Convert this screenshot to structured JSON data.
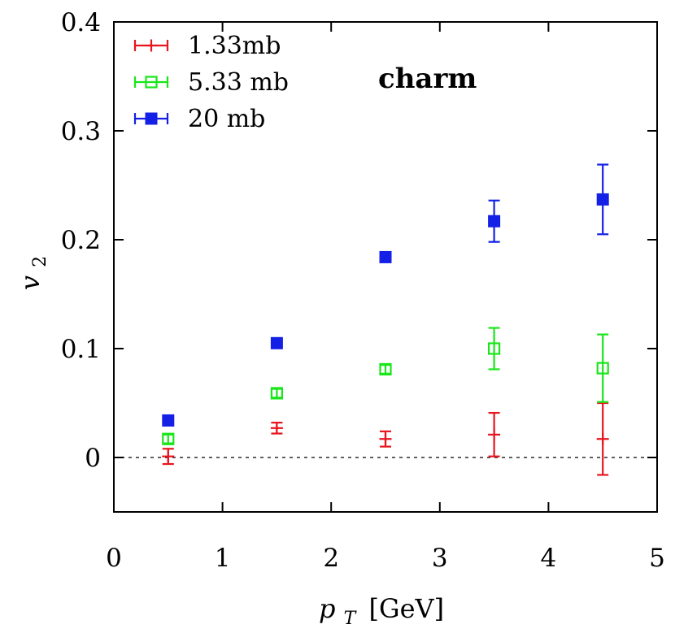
{
  "chart_data": {
    "type": "scatter",
    "xlabel": "p",
    "xlabel_sub": "T",
    "xlabel_unit": "[GeV]",
    "ylabel": "v",
    "ylabel_sub": "2",
    "xlim": [
      0,
      5
    ],
    "ylim": [
      -0.05,
      0.4
    ],
    "xticks": [
      "0",
      "1",
      "2",
      "3",
      "4",
      "5"
    ],
    "xtick_values": [
      0,
      1,
      2,
      3,
      4,
      5
    ],
    "yticks": [
      "0",
      "0.1",
      "0.2",
      "0.3",
      "0.4"
    ],
    "ytick_values": [
      0,
      0.1,
      0.2,
      0.3,
      0.4
    ],
    "reference_line": {
      "y": 0,
      "style": "dashed"
    },
    "annotation": "charm",
    "legend_position": "top-left",
    "series": [
      {
        "name": "1.33mb",
        "color": "#e8141e",
        "marker": "plus",
        "points": [
          {
            "x": 0.5,
            "y": 0.001,
            "err": 0.007
          },
          {
            "x": 1.5,
            "y": 0.027,
            "err": 0.005
          },
          {
            "x": 2.5,
            "y": 0.017,
            "err": 0.007
          },
          {
            "x": 3.5,
            "y": 0.021,
            "err": 0.02
          },
          {
            "x": 4.5,
            "y": 0.017,
            "err": 0.033
          }
        ]
      },
      {
        "name": "5.33 mb",
        "color": "#19e619",
        "marker": "open-square",
        "points": [
          {
            "x": 0.5,
            "y": 0.017,
            "err": 0.004
          },
          {
            "x": 1.5,
            "y": 0.059,
            "err": 0.004
          },
          {
            "x": 2.5,
            "y": 0.081,
            "err": 0.004
          },
          {
            "x": 3.5,
            "y": 0.1,
            "err": 0.019
          },
          {
            "x": 4.5,
            "y": 0.082,
            "err": 0.031
          }
        ]
      },
      {
        "name": "20 mb",
        "color": "#1420e6",
        "marker": "filled-square",
        "points": [
          {
            "x": 0.5,
            "y": 0.034,
            "err": 0.0
          },
          {
            "x": 1.5,
            "y": 0.105,
            "err": 0.0
          },
          {
            "x": 2.5,
            "y": 0.184,
            "err": 0.0
          },
          {
            "x": 3.5,
            "y": 0.217,
            "err": 0.019
          },
          {
            "x": 4.5,
            "y": 0.237,
            "err": 0.032
          }
        ]
      }
    ]
  }
}
